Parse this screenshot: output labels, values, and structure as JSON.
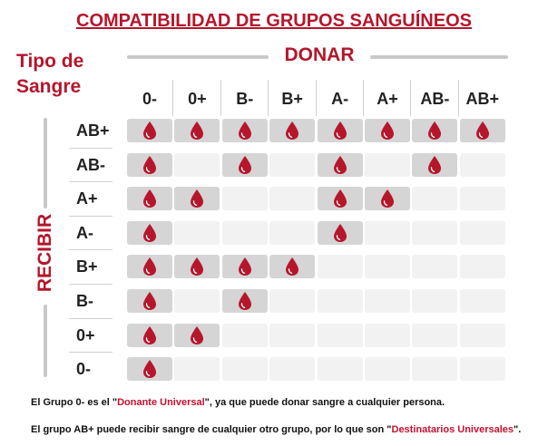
{
  "title": "COMPATIBILIDAD DE GRUPOS SANGUÍNEOS",
  "tipo_label_line1": "Tipo de",
  "tipo_label_line2": "Sangre",
  "donar_label": "DONAR",
  "recibir_label": "RECIBIR",
  "donors": [
    "0-",
    "0+",
    "B-",
    "B+",
    "A-",
    "A+",
    "AB-",
    "AB+"
  ],
  "recipients": [
    "AB+",
    "AB-",
    "A+",
    "A-",
    "B+",
    "B-",
    "0+",
    "0-"
  ],
  "compatibility": [
    [
      1,
      1,
      1,
      1,
      1,
      1,
      1,
      1
    ],
    [
      1,
      0,
      1,
      0,
      1,
      0,
      1,
      0
    ],
    [
      1,
      1,
      0,
      0,
      1,
      1,
      0,
      0
    ],
    [
      1,
      0,
      0,
      0,
      1,
      0,
      0,
      0
    ],
    [
      1,
      1,
      1,
      1,
      0,
      0,
      0,
      0
    ],
    [
      1,
      0,
      1,
      0,
      0,
      0,
      0,
      0
    ],
    [
      1,
      1,
      0,
      0,
      0,
      0,
      0,
      0
    ],
    [
      1,
      0,
      0,
      0,
      0,
      0,
      0,
      0
    ]
  ],
  "note1": {
    "pre": "El Grupo 0- es el \"",
    "highlight": "Donante Universal",
    "post": "\", ya que puede donar sangre a cualquier persona."
  },
  "note2": {
    "pre": "El grupo AB+ puede recibir sangre de cualquier otro grupo, por lo que son \"",
    "highlight": "Destinatarios Universales",
    "post": "\"."
  },
  "colors": {
    "accent": "#b5162b",
    "drop": "#b5162b",
    "cell_on": "#d5d5d5",
    "cell_off": "#f2f2f2"
  },
  "icon": "blood-drop-icon"
}
